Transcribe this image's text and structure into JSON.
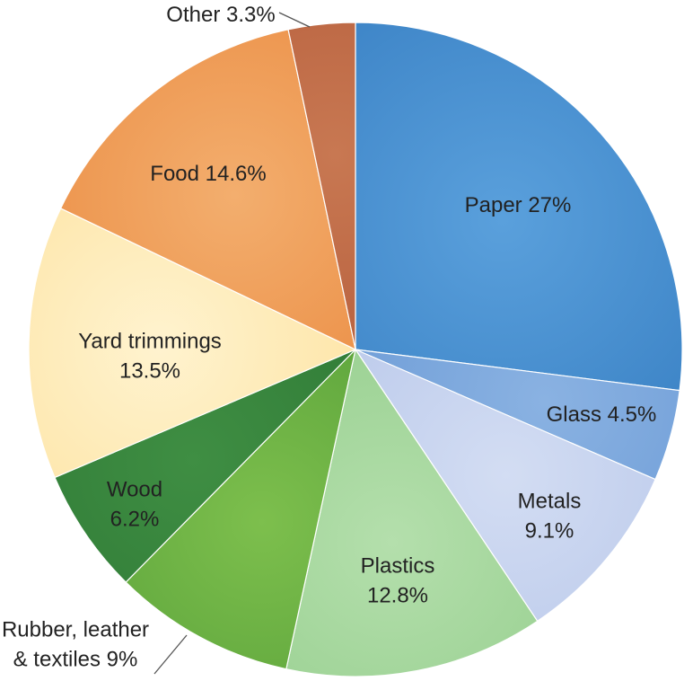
{
  "chart_data": {
    "type": "pie",
    "title": "",
    "start_angle_deg": 0,
    "direction": "clockwise",
    "slices": [
      {
        "label": "Paper",
        "value": 27,
        "display": [
          "Paper 27%"
        ],
        "color": "#3f86c8",
        "color_light": "#5aa0dc"
      },
      {
        "label": "Glass",
        "value": 4.5,
        "display": [
          "Glass 4.5%"
        ],
        "color": "#6c9bd6",
        "color_light": "#8ab2e2"
      },
      {
        "label": "Metals",
        "value": 9.1,
        "display": [
          "Metals",
          "9.1%"
        ],
        "color": "#b9c8ea",
        "color_light": "#d3ddf3"
      },
      {
        "label": "Plastics",
        "value": 12.8,
        "display": [
          "Plastics",
          "12.8%"
        ],
        "color": "#97cf8f",
        "color_light": "#b4dfac"
      },
      {
        "label": "Rubber, leather & textiles",
        "value": 9,
        "display": [
          "Rubber, leather",
          "& textiles 9%"
        ],
        "color": "#5aa23a",
        "color_light": "#7dbf4d"
      },
      {
        "label": "Wood",
        "value": 6.2,
        "display": [
          "Wood",
          "6.2%"
        ],
        "color": "#2f7a36",
        "color_light": "#3f8e43"
      },
      {
        "label": "Yard trimmings",
        "value": 13.5,
        "display": [
          "Yard trimmings",
          "13.5%"
        ],
        "color": "#fde3a2",
        "color_light": "#fff3cf"
      },
      {
        "label": "Food",
        "value": 14.6,
        "display": [
          "Food 14.6%"
        ],
        "color": "#eb8e45",
        "color_light": "#f3ae6e"
      },
      {
        "label": "Other",
        "value": 3.3,
        "display": [
          "Other 3.3%"
        ],
        "color": "#b65e3c",
        "color_light": "#c87852"
      }
    ]
  }
}
